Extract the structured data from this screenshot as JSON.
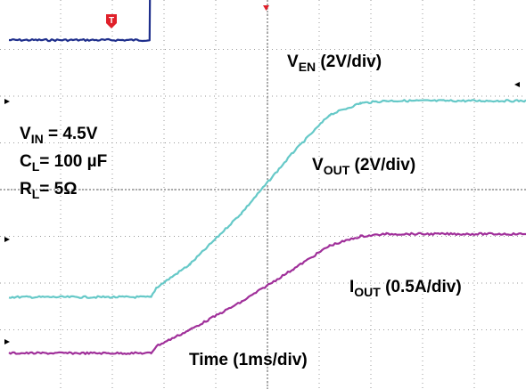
{
  "chart_data": {
    "type": "line",
    "title": "",
    "xlabel": "Time (1ms/div)",
    "ylabel": "",
    "x_units": "ms",
    "x_range": [
      0,
      10
    ],
    "grid": true,
    "trigger_marker": "T",
    "conditions": [
      {
        "symbol": "V",
        "subscript": "IN",
        "text": " = 4.5V"
      },
      {
        "symbol": "C",
        "subscript": "L",
        "text": "= 100 µF"
      },
      {
        "symbol": "R",
        "subscript": "L",
        "text": "= 5Ω"
      }
    ],
    "series": [
      {
        "key": "ven",
        "name_symbol": "V",
        "name_subscript": "EN",
        "name_suffix": " (2V/div)",
        "color": "#1f2f8c",
        "x": [
          0,
          2.72,
          2.74,
          10
        ],
        "y": [
          7.2,
          7.2,
          9.8,
          9.8
        ]
      },
      {
        "key": "vout",
        "name_symbol": "V",
        "name_subscript": "OUT",
        "name_suffix": " (2V/div)",
        "color": "#66c9c8",
        "x": [
          0,
          2.75,
          2.85,
          3.5,
          4.5,
          5.5,
          6.2,
          6.8,
          7.3,
          10
        ],
        "y": [
          1.7,
          1.7,
          1.9,
          2.4,
          3.5,
          4.8,
          5.6,
          5.85,
          5.9,
          5.9
        ]
      },
      {
        "key": "iout",
        "name_symbol": "I",
        "name_subscript": "OUT",
        "name_suffix": " (0.5A/div)",
        "color": "#a0309a",
        "x": [
          0,
          2.75,
          2.85,
          3.5,
          4.5,
          5.5,
          6.2,
          6.8,
          7.3,
          10
        ],
        "y": [
          0.5,
          0.5,
          0.65,
          1.0,
          1.6,
          2.3,
          2.8,
          3.0,
          3.05,
          3.05
        ]
      }
    ]
  }
}
